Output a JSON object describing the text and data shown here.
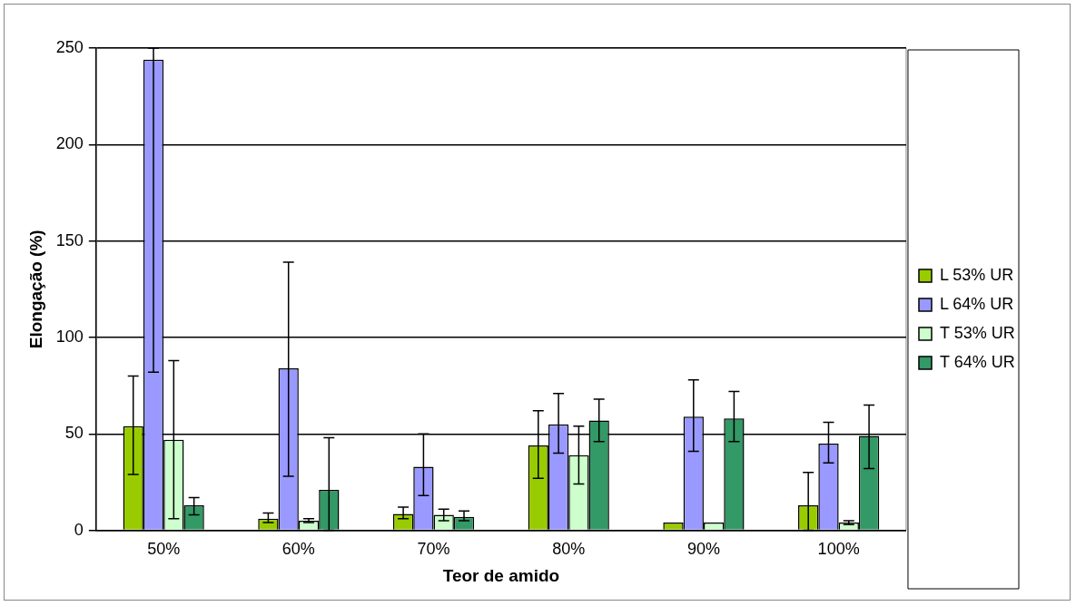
{
  "chart_data": {
    "type": "bar",
    "xlabel": "Teor de amido",
    "ylabel": "Elongação (%)",
    "categories": [
      "50%",
      "60%",
      "70%",
      "80%",
      "90%",
      "100%"
    ],
    "series": [
      {
        "name": "L 53% UR",
        "color": "#99cc00",
        "values": [
          54,
          6,
          8.5,
          44,
          4,
          13
        ],
        "errors": [
          [
            29,
            80
          ],
          [
            4,
            9
          ],
          [
            6,
            12
          ],
          [
            27,
            62
          ],
          null,
          [
            0,
            30
          ]
        ]
      },
      {
        "name": "L 64% UR",
        "color": "#9999ff",
        "values": [
          244,
          84,
          33,
          55,
          59,
          45
        ],
        "errors": [
          [
            82,
            250
          ],
          [
            28,
            139
          ],
          [
            18,
            50
          ],
          [
            40,
            71
          ],
          [
            41,
            78
          ],
          [
            35,
            56
          ]
        ]
      },
      {
        "name": "T 53% UR",
        "color": "#ccffcc",
        "values": [
          47,
          5,
          8,
          39,
          4,
          4
        ],
        "errors": [
          [
            6,
            88
          ],
          [
            4,
            6
          ],
          [
            5,
            11
          ],
          [
            24,
            54
          ],
          null,
          [
            3,
            5
          ]
        ]
      },
      {
        "name": "T 64% UR",
        "color": "#339966",
        "values": [
          13,
          21,
          7,
          57,
          58,
          49
        ],
        "errors": [
          [
            8,
            17
          ],
          [
            0,
            48
          ],
          [
            5,
            10
          ],
          [
            46,
            68
          ],
          [
            46,
            72
          ],
          [
            32,
            65
          ]
        ]
      }
    ],
    "ylim": [
      0,
      250
    ],
    "yticks": [
      0,
      50,
      100,
      150,
      200,
      250
    ],
    "grid": "y",
    "legend": "right"
  }
}
